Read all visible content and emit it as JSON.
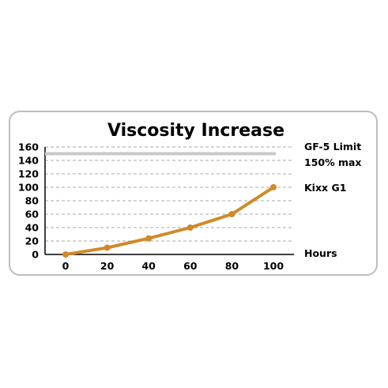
{
  "chart_data": {
    "type": "line",
    "title": "Viscosity Increase",
    "xlabel": "Hours",
    "ylabel": "",
    "x": [
      0,
      20,
      40,
      60,
      80,
      100
    ],
    "xlim": [
      0,
      100
    ],
    "ylim": [
      0,
      160
    ],
    "yticks": [
      0,
      20,
      40,
      60,
      80,
      100,
      120,
      140,
      160
    ],
    "xticks": [
      0,
      20,
      40,
      60,
      80,
      100
    ],
    "grid": "horizontal dashed",
    "series": [
      {
        "name": "Kixx G1",
        "values": [
          0,
          10,
          24,
          40,
          60,
          100
        ],
        "color": "#d08a2a"
      }
    ],
    "limit": {
      "label_line1": "GF-5 Limit",
      "label_line2": "150% max",
      "value": 150,
      "color": "#c8c8c8"
    }
  }
}
